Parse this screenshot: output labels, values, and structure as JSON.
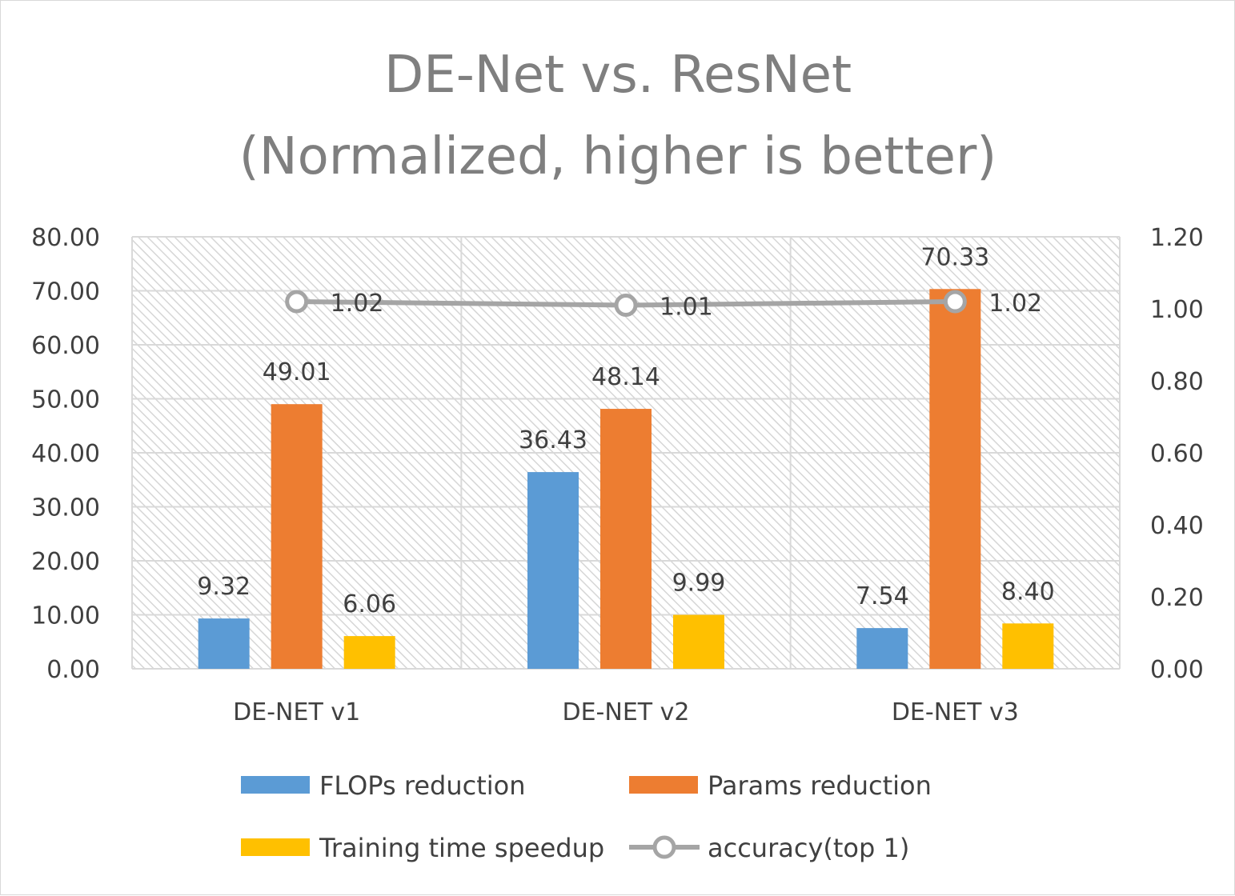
{
  "chart_data": {
    "type": "bar",
    "title": [
      "DE-Net vs. ResNet",
      "(Normalized, higher is better)"
    ],
    "categories": [
      "DE-NET v1",
      "DE-NET v2",
      "DE-NET v3"
    ],
    "y_left": {
      "min": 0,
      "max": 80,
      "step": 10,
      "decimals": 2
    },
    "y_right": {
      "min": 0,
      "max": 1.2,
      "step": 0.2,
      "decimals": 2
    },
    "grid": true,
    "legend_position": "bottom",
    "series": [
      {
        "name": "FLOPs reduction",
        "type": "bar",
        "axis": "left",
        "color": "#5b9bd5",
        "values": [
          9.32,
          36.43,
          7.54
        ],
        "labels": [
          "9.32",
          "36.43",
          "7.54"
        ]
      },
      {
        "name": "Params reduction",
        "type": "bar",
        "axis": "left",
        "color": "#ed7d31",
        "values": [
          49.01,
          48.14,
          70.33
        ],
        "labels": [
          "49.01",
          "48.14",
          "70.33"
        ]
      },
      {
        "name": "Training time speedup",
        "type": "bar",
        "axis": "left",
        "color": "#ffc000",
        "values": [
          6.06,
          9.99,
          8.4
        ],
        "labels": [
          "6.06",
          "9.99",
          "8.40"
        ]
      },
      {
        "name": "accuracy(top 1)",
        "type": "line",
        "axis": "right",
        "color": "#a5a5a5",
        "values": [
          1.02,
          1.01,
          1.02
        ],
        "labels": [
          "1.02",
          "1.01",
          "1.02"
        ]
      }
    ]
  }
}
